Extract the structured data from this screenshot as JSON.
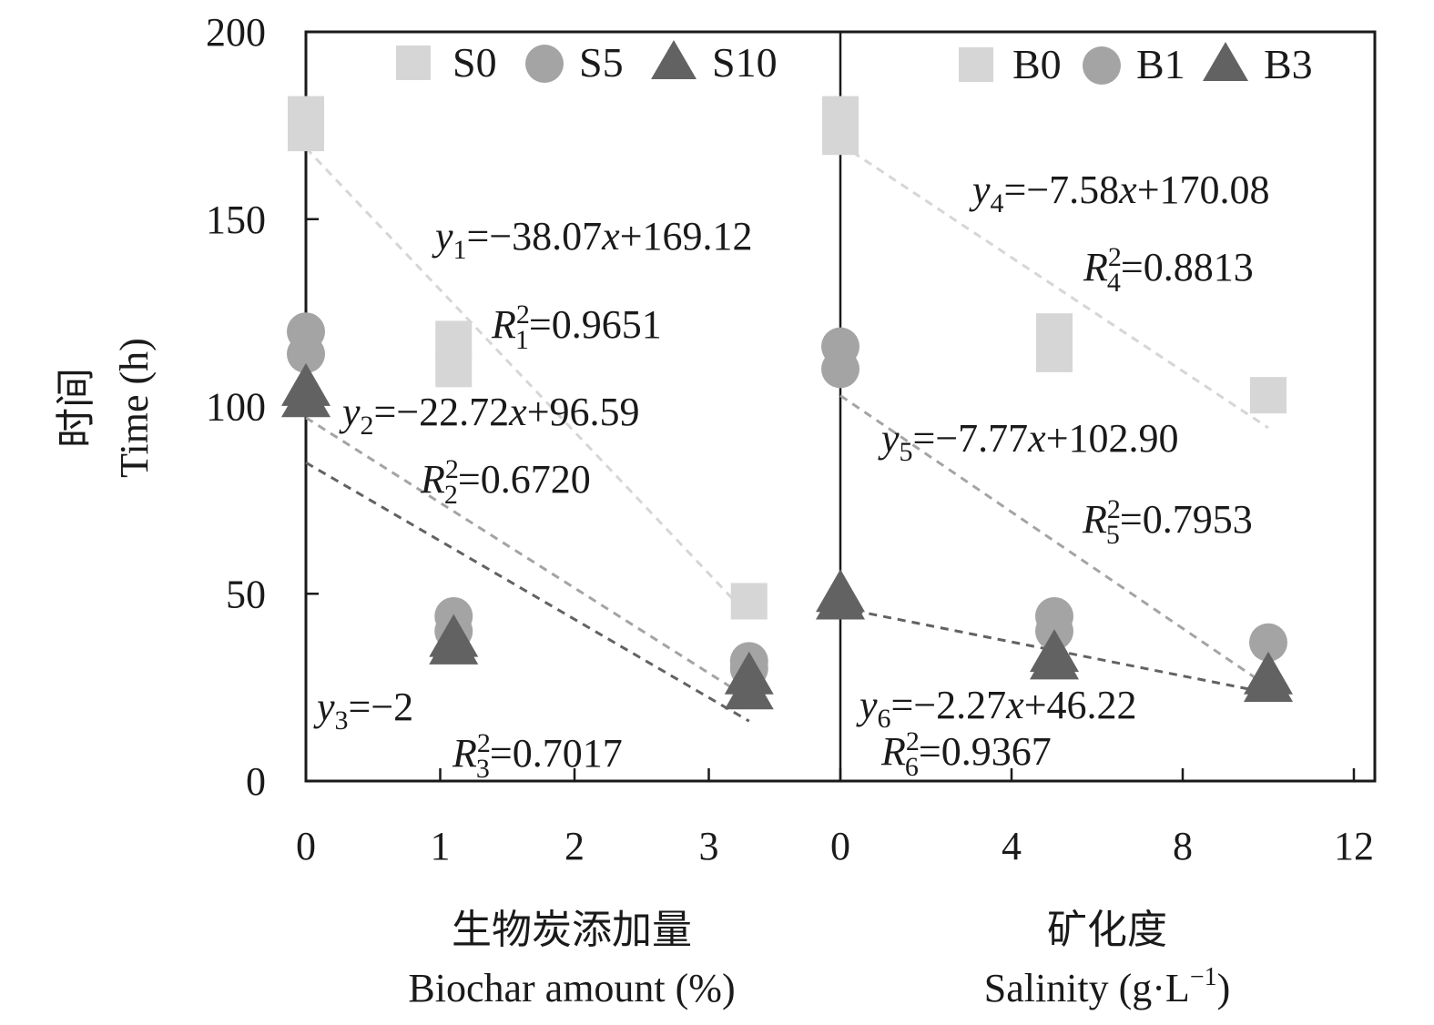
{
  "chart_data": [
    {
      "type": "scatter",
      "panel": "left",
      "xlabel_cn": "生物炭添加量",
      "xlabel_en": "Biochar amount (%)",
      "ylabel_cn": "时间",
      "ylabel_en": "Time (h)",
      "xlim": [
        0,
        4
      ],
      "ylim": [
        0,
        200
      ],
      "x_ticks": [
        0,
        1,
        2,
        3
      ],
      "y_ticks": [
        0,
        50,
        100,
        150,
        200
      ],
      "series": [
        {
          "name": "S0",
          "marker": "square",
          "color": "#d6d6d6",
          "points": [
            [
              0,
              178
            ],
            [
              0,
              173
            ],
            [
              1.1,
              118
            ],
            [
              1.1,
              110
            ],
            [
              3.3,
              48
            ]
          ]
        },
        {
          "name": "S5",
          "marker": "circle",
          "color": "#a4a4a4",
          "points": [
            [
              0,
              120
            ],
            [
              0,
              114
            ],
            [
              1.1,
              44
            ],
            [
              1.1,
              40
            ],
            [
              3.3,
              32
            ],
            [
              3.3,
              30
            ]
          ]
        },
        {
          "name": "S10",
          "marker": "triangle",
          "color": "#626262",
          "points": [
            [
              0,
              105
            ],
            [
              0,
              102
            ],
            [
              1.1,
              38
            ],
            [
              1.1,
              36
            ],
            [
              3.3,
              28
            ],
            [
              3.3,
              24
            ]
          ]
        }
      ],
      "trendlines": [
        {
          "color": "#d6d6d6",
          "from": [
            0,
            169
          ],
          "to": [
            3.3,
            44
          ]
        },
        {
          "color": "#a4a4a4",
          "from": [
            0,
            97
          ],
          "to": [
            3.3,
            22
          ]
        },
        {
          "color": "#626262",
          "from": [
            0,
            85
          ],
          "to": [
            3.3,
            16
          ]
        }
      ],
      "equations": [
        {
          "y": "y",
          "sub": "1",
          "rest": "=−38.07",
          "xvar": "x",
          "tail": "+169.12"
        },
        {
          "y": "y",
          "sub": "2",
          "rest": "=−22.72",
          "xvar": "x",
          "tail": "+96.59"
        },
        {
          "y": "y",
          "sub": "3",
          "rest": "=−2",
          "xvar": "",
          "tail": ""
        }
      ],
      "r2": [
        {
          "R": "R",
          "sup": "2",
          "sub": "1",
          "val": "=0.9651"
        },
        {
          "R": "R",
          "sup": "2",
          "sub": "2",
          "val": "=0.6720"
        },
        {
          "R": "R",
          "sup": "2",
          "sub": "3",
          "val": "=0.7017"
        }
      ]
    },
    {
      "type": "scatter",
      "panel": "right",
      "xlabel_cn": "矿化度",
      "xlabel_en": "Salinity (g·L",
      "xlabel_en_sup": "−1",
      "xlabel_en_close": ")",
      "xlim": [
        0,
        12.5
      ],
      "ylim": [
        0,
        200
      ],
      "x_ticks": [
        0,
        4,
        8,
        12
      ],
      "series": [
        {
          "name": "B0",
          "marker": "square",
          "color": "#d6d6d6",
          "points": [
            [
              0,
              178
            ],
            [
              0,
              172
            ],
            [
              5,
              120
            ],
            [
              5,
              114
            ],
            [
              10,
              103
            ]
          ]
        },
        {
          "name": "B1",
          "marker": "circle",
          "color": "#a4a4a4",
          "points": [
            [
              0,
              116
            ],
            [
              0,
              110
            ],
            [
              5,
              44
            ],
            [
              5,
              40
            ],
            [
              10,
              37
            ]
          ]
        },
        {
          "name": "B3",
          "marker": "triangle",
          "color": "#626262",
          "points": [
            [
              0,
              50
            ],
            [
              0,
              48
            ],
            [
              5,
              34
            ],
            [
              5,
              32
            ],
            [
              10,
              28
            ],
            [
              10,
              26
            ]
          ]
        }
      ],
      "trendlines": [
        {
          "color": "#d6d6d6",
          "from": [
            0,
            170.08
          ],
          "to": [
            10,
            94.28
          ]
        },
        {
          "color": "#a4a4a4",
          "from": [
            0,
            102.9
          ],
          "to": [
            10,
            25.2
          ]
        },
        {
          "color": "#626262",
          "from": [
            0,
            46.22
          ],
          "to": [
            10,
            23.52
          ]
        }
      ],
      "equations": [
        {
          "y": "y",
          "sub": "4",
          "rest": "=−7.58",
          "xvar": "x",
          "tail": "+170.08"
        },
        {
          "y": "y",
          "sub": "5",
          "rest": "=−7.77",
          "xvar": "x",
          "tail": "+102.90"
        },
        {
          "y": "y",
          "sub": "6",
          "rest": "=−2.27",
          "xvar": "x",
          "tail": "+46.22"
        }
      ],
      "r2": [
        {
          "R": "R",
          "sup": "2",
          "sub": "4",
          "val": "=0.8813"
        },
        {
          "R": "R",
          "sup": "2",
          "sub": "5",
          "val": "=0.7953"
        },
        {
          "R": "R",
          "sup": "2",
          "sub": "6",
          "val": "=0.9367"
        }
      ]
    }
  ]
}
